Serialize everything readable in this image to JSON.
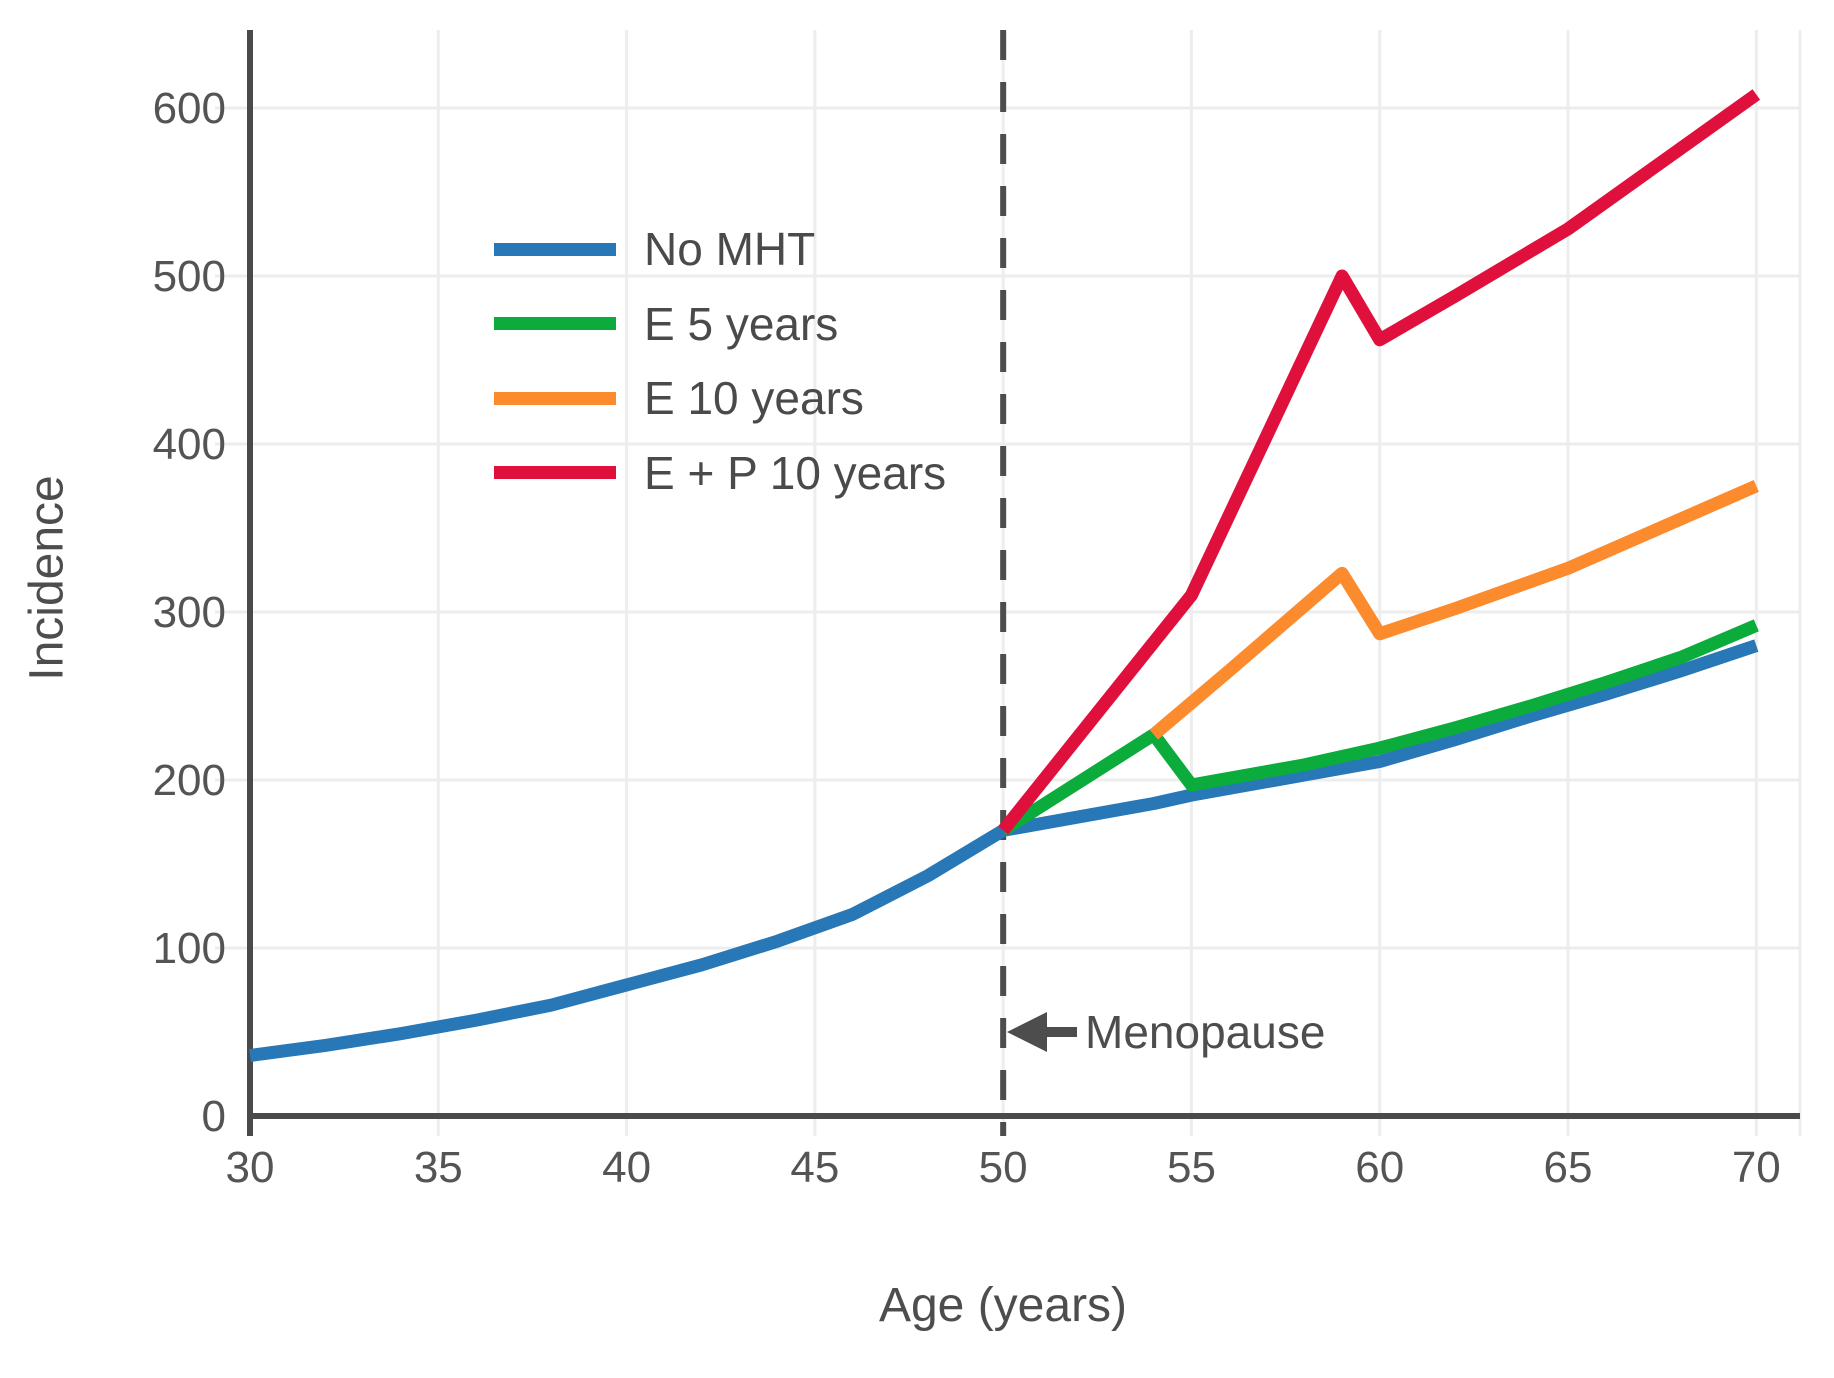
{
  "chart_data": {
    "type": "line",
    "title": "",
    "xlabel": "Age (years)",
    "ylabel": "Incidence",
    "xlim": [
      30,
      70
    ],
    "ylim": [
      0,
      600
    ],
    "x_ticks": [
      30,
      35,
      40,
      45,
      50,
      55,
      60,
      65,
      70
    ],
    "y_ticks": [
      0,
      100,
      200,
      300,
      400,
      500,
      600
    ],
    "grid": true,
    "legend_position": "upper-left-inside",
    "colors": {
      "axis": "#4a4a4a",
      "grid": "#ededed",
      "tick_text": "#545454",
      "annotation": "#4d4d4d"
    },
    "annotations": [
      {
        "type": "vline",
        "x": 50,
        "style": "dashed",
        "label": "Menopause",
        "arrow": "left"
      }
    ],
    "series": [
      {
        "name": "No MHT",
        "color": "#2878b8",
        "points": [
          [
            30,
            36
          ],
          [
            32,
            42
          ],
          [
            34,
            49
          ],
          [
            36,
            57
          ],
          [
            38,
            66
          ],
          [
            40,
            78
          ],
          [
            42,
            90
          ],
          [
            44,
            104
          ],
          [
            46,
            120
          ],
          [
            48,
            143
          ],
          [
            50,
            170
          ],
          [
            52,
            178
          ],
          [
            54,
            186
          ],
          [
            55,
            191
          ],
          [
            56,
            195
          ],
          [
            58,
            203
          ],
          [
            60,
            211
          ],
          [
            62,
            224
          ],
          [
            64,
            238
          ],
          [
            66,
            251
          ],
          [
            68,
            265
          ],
          [
            70,
            280
          ]
        ]
      },
      {
        "name": "E 5 years",
        "color": "#0bab3c",
        "points": [
          [
            50,
            170
          ],
          [
            54,
            227
          ],
          [
            55,
            197
          ],
          [
            56,
            201
          ],
          [
            58,
            209
          ],
          [
            60,
            219
          ],
          [
            62,
            231
          ],
          [
            64,
            244
          ],
          [
            66,
            258
          ],
          [
            68,
            273
          ],
          [
            70,
            292
          ]
        ]
      },
      {
        "name": "E 10 years",
        "color": "#fc8b2e",
        "points": [
          [
            54,
            227
          ],
          [
            56,
            265
          ],
          [
            59,
            323
          ],
          [
            60,
            287
          ],
          [
            62,
            302
          ],
          [
            65,
            326
          ],
          [
            70,
            375
          ]
        ]
      },
      {
        "name": "E + P 10 years",
        "color": "#e0103c",
        "points": [
          [
            50,
            170
          ],
          [
            55,
            310
          ],
          [
            59,
            500
          ],
          [
            60,
            462
          ],
          [
            62,
            488
          ],
          [
            65,
            528
          ],
          [
            70,
            608
          ]
        ]
      }
    ]
  }
}
